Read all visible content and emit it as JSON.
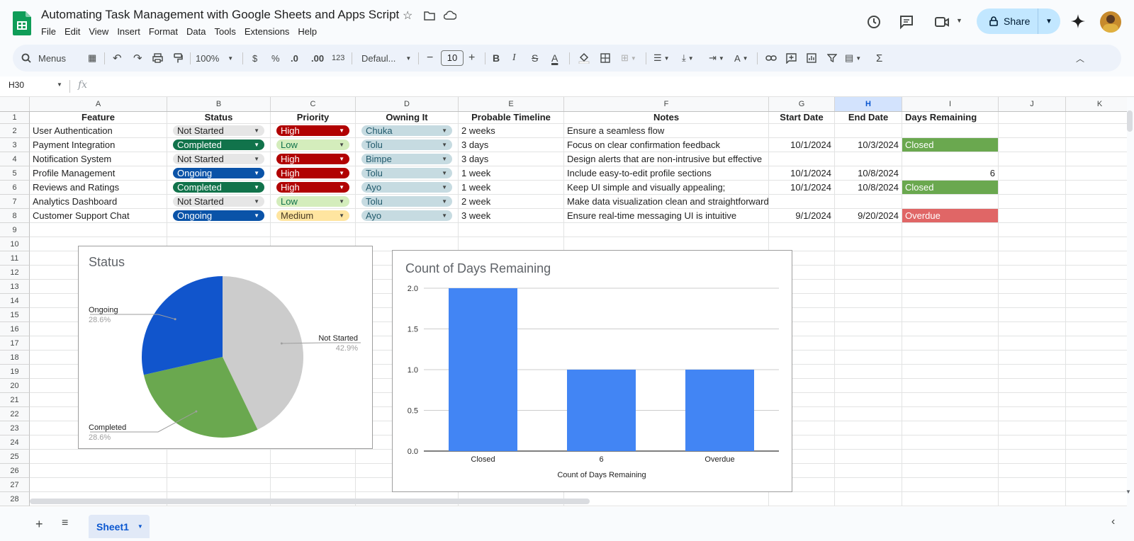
{
  "app": {
    "title": "Automating Task Management with Google Sheets and Apps Script",
    "menu": [
      "File",
      "Edit",
      "View",
      "Insert",
      "Format",
      "Data",
      "Tools",
      "Extensions",
      "Help"
    ],
    "share_label": "Share"
  },
  "toolbar": {
    "search_label": "Menus",
    "zoom": "100%",
    "currency": "$",
    "percent": "%",
    "dec_decrease": ".0",
    "dec_increase": ".00",
    "number_format": "123",
    "font": "Defaul...",
    "font_size": "10"
  },
  "formula_bar": {
    "cell_ref": "H30",
    "fx": "fx",
    "value": ""
  },
  "grid": {
    "columns": [
      "A",
      "B",
      "C",
      "D",
      "E",
      "F",
      "G",
      "H",
      "I",
      "J",
      "K"
    ],
    "selected_column": "H",
    "rows": [
      "1",
      "2",
      "3",
      "4",
      "5",
      "6",
      "7",
      "8",
      "9",
      "10",
      "11",
      "12",
      "13",
      "14",
      "15",
      "16",
      "17",
      "18",
      "19",
      "20",
      "21",
      "22",
      "23",
      "24",
      "25",
      "26",
      "27",
      "28"
    ],
    "headers": {
      "feature": "Feature",
      "status": "Status",
      "priority": "Priority",
      "owner": "Owning It",
      "timeline": "Probable Timeline",
      "notes": "Notes",
      "start": "Start Date",
      "end": "End Date",
      "days": "Days Remaining"
    },
    "data": [
      {
        "feature": "User Authentication",
        "status": "Not Started",
        "priority": "High",
        "owner": "Chuka",
        "timeline": "2 weeks",
        "notes": "Ensure a seamless flow",
        "start": "",
        "end": "",
        "days": ""
      },
      {
        "feature": "Payment Integration",
        "status": "Completed",
        "priority": "Low",
        "owner": "Tolu",
        "timeline": "3 days",
        "notes": "Focus on clear confirmation feedback",
        "start": "10/1/2024",
        "end": "10/3/2024",
        "days": "Closed"
      },
      {
        "feature": "Notification System",
        "status": "Not Started",
        "priority": "High",
        "owner": "Bimpe",
        "timeline": "3 days",
        "notes": "Design alerts that are non-intrusive but effective",
        "start": "",
        "end": "",
        "days": ""
      },
      {
        "feature": "Profile Management",
        "status": "Ongoing",
        "priority": "High",
        "owner": "Tolu",
        "timeline": "1 week",
        "notes": "Include easy-to-edit profile sections",
        "start": "10/1/2024",
        "end": "10/8/2024",
        "days": "6"
      },
      {
        "feature": "Reviews and Ratings",
        "status": "Completed",
        "priority": "High",
        "owner": "Ayo",
        "timeline": "1 week",
        "notes": "Keep UI simple and visually appealing;",
        "start": "10/1/2024",
        "end": "10/8/2024",
        "days": "Closed"
      },
      {
        "feature": "Analytics Dashboard",
        "status": "Not Started",
        "priority": "Low",
        "owner": "Tolu",
        "timeline": "2 week",
        "notes": "Make data visualization clean and straightforward;",
        "start": "",
        "end": "",
        "days": ""
      },
      {
        "feature": "Customer Support Chat",
        "status": "Ongoing",
        "priority": "Medium",
        "owner": "Ayo",
        "timeline": "3 week",
        "notes": "Ensure real-time messaging UI is intuitive",
        "start": "9/1/2024",
        "end": "9/20/2024",
        "days": "Overdue"
      }
    ]
  },
  "colors": {
    "not_started_bg": "#e6e6e6",
    "not_started_fg": "#1f1f1f",
    "completed_bg": "#11734b",
    "completed_fg": "#ffffff",
    "ongoing_bg": "#0a53a8",
    "ongoing_fg": "#ffffff",
    "high_bg": "#b10202",
    "high_fg": "#ffffff",
    "low_bg": "#d4edbc",
    "low_fg": "#11734b",
    "medium_bg": "#ffe5a0",
    "medium_fg": "#473821",
    "owner_bg": "#c6dbe1",
    "owner_fg": "#215a6c",
    "closed_fill": "#6aa84f",
    "overdue_fill": "#e06666"
  },
  "chart_data": [
    {
      "type": "pie",
      "title": "Status",
      "slices": [
        {
          "label": "Not Started",
          "value": 42.9,
          "pct_label": "42.9%",
          "color": "#cccccc"
        },
        {
          "label": "Completed",
          "value": 28.6,
          "pct_label": "28.6%",
          "color": "#6aa84f"
        },
        {
          "label": "Ongoing",
          "value": 28.6,
          "pct_label": "28.6%",
          "color": "#1155cc"
        }
      ]
    },
    {
      "type": "bar",
      "title": "Count of Days Remaining",
      "categories": [
        "Closed",
        "6",
        "Overdue"
      ],
      "values": [
        2,
        1,
        1
      ],
      "xlabel": "Count of Days Remaining",
      "ylabel": "",
      "ylim": [
        0,
        2
      ],
      "yticks": [
        "0.0",
        "0.5",
        "1.0",
        "1.5",
        "2.0"
      ],
      "color": "#4285f4",
      "grid": true
    }
  ],
  "sheet_tab": {
    "name": "Sheet1"
  }
}
